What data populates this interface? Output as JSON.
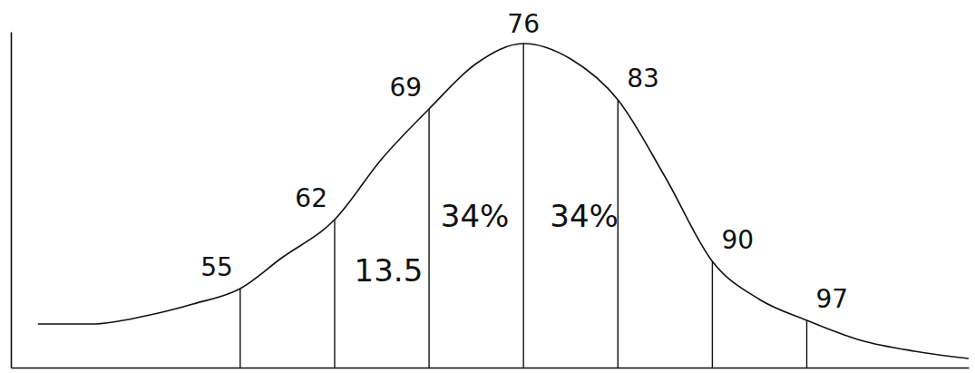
{
  "chart_data": {
    "type": "line",
    "x": [
      40,
      44,
      48,
      51.5,
      55,
      58,
      62,
      65.5,
      69,
      72.5,
      76,
      79.5,
      83,
      86.5,
      90,
      93.5,
      97,
      101,
      105,
      109
    ],
    "values": [
      48,
      48,
      57,
      70,
      87,
      120,
      163,
      230,
      285,
      335,
      357,
      340,
      295,
      210,
      117,
      75,
      52,
      30,
      18,
      10
    ],
    "xlim": [
      38,
      109
    ],
    "ylim": [
      0,
      370
    ],
    "xticks": [
      55,
      62,
      69,
      76,
      83,
      90,
      97
    ],
    "tick_labels": "x",
    "color": "#111111",
    "annotations": [
      {
        "text": "34%",
        "x": 72.4,
        "y": 155
      },
      {
        "text": "34%",
        "x": 80.5,
        "y": 155
      },
      {
        "text": "13.5",
        "x": 66,
        "y": 95
      }
    ]
  }
}
